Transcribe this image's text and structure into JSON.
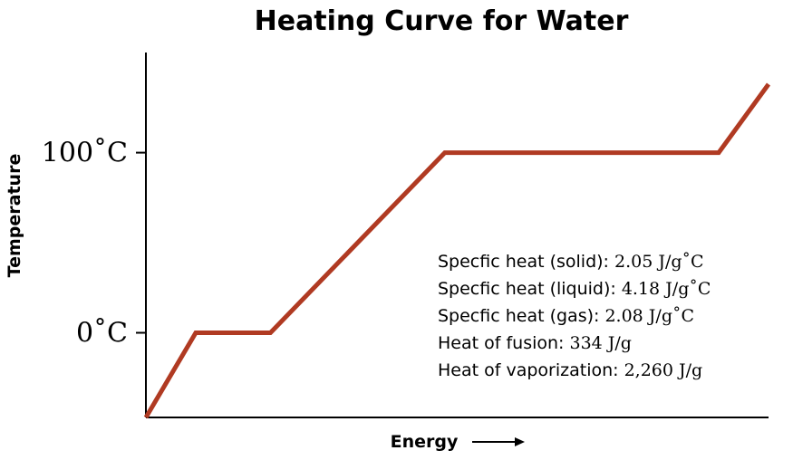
{
  "chart_data": {
    "type": "line",
    "title": "Heating Curve for Water",
    "xlabel": "Energy",
    "ylabel": "Temperature",
    "y_ticks": [
      {
        "value": 100,
        "label": "100˚C"
      },
      {
        "value": 0,
        "label": "0˚C"
      }
    ],
    "series": [
      {
        "x": [
          0,
          1,
          2.5,
          6,
          11.5,
          12.5
        ],
        "y": [
          -47,
          0,
          0,
          100,
          100,
          138
        ]
      }
    ],
    "xlim": [
      0,
      12.5
    ],
    "ylim": [
      -47,
      138
    ],
    "grid": false,
    "line_color": "#b03a22",
    "annotations": [
      {
        "text": "Specfic heat (solid): ",
        "value": "2.05 J/g˚C"
      },
      {
        "text": "Specfic heat (liquid): ",
        "value": "4.18 J/g˚C"
      },
      {
        "text": "Specfic heat (gas): ",
        "value": "2.08 J/g˚C"
      },
      {
        "text": "Heat of fusion: ",
        "value": "334 J/g"
      },
      {
        "text": "Heat of vaporization: ",
        "value": "2,260 J/g"
      }
    ]
  }
}
